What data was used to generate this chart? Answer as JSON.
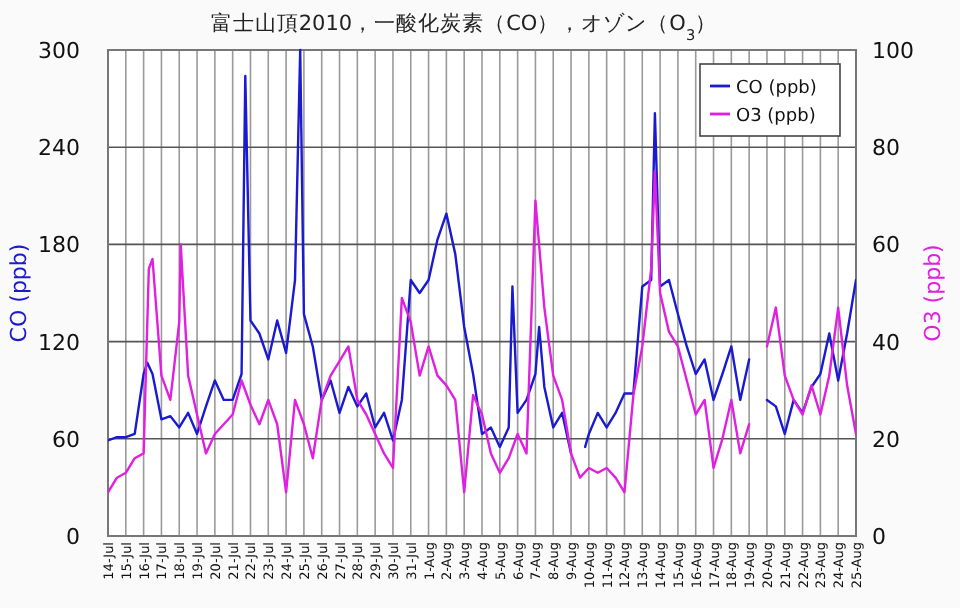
{
  "chart_data": {
    "type": "line",
    "title": "富士山頂2010，一酸化炭素（CO），オゾン（O$_{3}$）",
    "ylabel": "CO (ppb)",
    "y2label": "O3 (ppb)",
    "xlim": [
      "2010-07-14",
      "2010-08-25"
    ],
    "xticks": [
      {
        "value": "2010-07-14",
        "label": "14-Jul"
      },
      {
        "value": "2010-07-15",
        "label": "15-Jul"
      },
      {
        "value": "2010-07-16",
        "label": "16-Jul"
      },
      {
        "value": "2010-07-17",
        "label": "17-Jul"
      },
      {
        "value": "2010-07-18",
        "label": "18-Jul"
      },
      {
        "value": "2010-07-19",
        "label": "19-Jul"
      },
      {
        "value": "2010-07-20",
        "label": "20-Jul"
      },
      {
        "value": "2010-07-21",
        "label": "21-Jul"
      },
      {
        "value": "2010-07-22",
        "label": "22-Jul"
      },
      {
        "value": "2010-07-23",
        "label": "23-Jul"
      },
      {
        "value": "2010-07-24",
        "label": "24-Jul"
      },
      {
        "value": "2010-07-25",
        "label": "25-Jul"
      },
      {
        "value": "2010-07-26",
        "label": "26-Jul"
      },
      {
        "value": "2010-07-27",
        "label": "27-Jul"
      },
      {
        "value": "2010-07-28",
        "label": "28-Jul"
      },
      {
        "value": "2010-07-29",
        "label": "29-Jul"
      },
      {
        "value": "2010-07-30",
        "label": "30-Jul"
      },
      {
        "value": "2010-07-31",
        "label": "31-Jul"
      },
      {
        "value": "2010-08-01",
        "label": "1-Aug"
      },
      {
        "value": "2010-08-02",
        "label": "2-Aug"
      },
      {
        "value": "2010-08-03",
        "label": "3-Aug"
      },
      {
        "value": "2010-08-04",
        "label": "4-Aug"
      },
      {
        "value": "2010-08-05",
        "label": "5-Aug"
      },
      {
        "value": "2010-08-06",
        "label": "6-Aug"
      },
      {
        "value": "2010-08-07",
        "label": "7-Aug"
      },
      {
        "value": "2010-08-08",
        "label": "8-Aug"
      },
      {
        "value": "2010-08-09",
        "label": "9-Aug"
      },
      {
        "value": "2010-08-10",
        "label": "10-Aug"
      },
      {
        "value": "2010-08-11",
        "label": "11-Aug"
      },
      {
        "value": "2010-08-12",
        "label": "12-Aug"
      },
      {
        "value": "2010-08-13",
        "label": "13-Aug"
      },
      {
        "value": "2010-08-14",
        "label": "14-Aug"
      },
      {
        "value": "2010-08-15",
        "label": "15-Aug"
      },
      {
        "value": "2010-08-16",
        "label": "16-Aug"
      },
      {
        "value": "2010-08-17",
        "label": "17-Aug"
      },
      {
        "value": "2010-08-18",
        "label": "18-Aug"
      },
      {
        "value": "2010-08-19",
        "label": "19-Aug"
      },
      {
        "value": "2010-08-20",
        "label": "20-Aug"
      },
      {
        "value": "2010-08-21",
        "label": "21-Aug"
      },
      {
        "value": "2010-08-22",
        "label": "22-Aug"
      },
      {
        "value": "2010-08-23",
        "label": "23-Aug"
      },
      {
        "value": "2010-08-24",
        "label": "24-Aug"
      },
      {
        "value": "2010-08-25",
        "label": "25-Aug"
      }
    ],
    "ylim": [
      0,
      300
    ],
    "yticks": [
      0,
      60,
      120,
      180,
      240,
      300
    ],
    "y2lim": [
      0,
      100
    ],
    "y2ticks": [
      0,
      20,
      40,
      60,
      80,
      100
    ],
    "grid": true,
    "legend": "top right",
    "series": [
      {
        "name": "CO (ppb)",
        "color": "#1a1ad0",
        "x": [
          "2010-07-14T00:00",
          "2010-07-14T12:00",
          "2010-07-15T00:00",
          "2010-07-15T12:00",
          "2010-07-16T00:00",
          "2010-07-16T05:00",
          "2010-07-16T12:00",
          "2010-07-17T00:00",
          "2010-07-17T12:00",
          "2010-07-18T00:00",
          "2010-07-18T12:00",
          "2010-07-19T00:00",
          "2010-07-19T12:00",
          "2010-07-20T00:00",
          "2010-07-20T12:00",
          "2010-07-21T00:00",
          "2010-07-21T12:00",
          "2010-07-21T17:00",
          "2010-07-22T00:00",
          "2010-07-22T12:00",
          "2010-07-23T00:00",
          "2010-07-23T12:00",
          "2010-07-24T00:00",
          "2010-07-24T12:00",
          "2010-07-24T19:00",
          "2010-07-25T00:00",
          "2010-07-25T12:00",
          "2010-07-26T00:00",
          "2010-07-26T12:00",
          "2010-07-27T00:00",
          "2010-07-27T12:00",
          "2010-07-28T00:00",
          "2010-07-28T12:00",
          "2010-07-29T00:00",
          "2010-07-29T12:00",
          "2010-07-30T00:00",
          "2010-07-30T12:00",
          "2010-07-31T00:00",
          "2010-07-31T12:00",
          "2010-08-01T00:00",
          "2010-08-01T12:00",
          "2010-08-02T00:00",
          "2010-08-02T12:00",
          "2010-08-03T00:00",
          "2010-08-03T12:00",
          "2010-08-04T00:00",
          "2010-08-04T12:00",
          "2010-08-05T00:00",
          "2010-08-05T12:00",
          "2010-08-05T17:00",
          "2010-08-06T00:00",
          "2010-08-06T12:00",
          "2010-08-07T00:00",
          "2010-08-07T05:00",
          "2010-08-07T12:00",
          "2010-08-08T00:00",
          "2010-08-08T12:00",
          "2010-08-09T00:00",
          "2010-08-09T12:00",
          "2010-08-09T19:00",
          "2010-08-10T00:00",
          "2010-08-10T12:00",
          "2010-08-11T00:00",
          "2010-08-11T12:00",
          "2010-08-12T00:00",
          "2010-08-12T12:00",
          "2010-08-13T00:00",
          "2010-08-13T12:00",
          "2010-08-13T17:00",
          "2010-08-14T00:00",
          "2010-08-14T12:00",
          "2010-08-15T00:00",
          "2010-08-15T12:00",
          "2010-08-16T00:00",
          "2010-08-16T12:00",
          "2010-08-17T00:00",
          "2010-08-17T12:00",
          "2010-08-18T00:00",
          "2010-08-18T12:00",
          "2010-08-19T00:00",
          "2010-08-19T12:00",
          "2010-08-20T00:00",
          "2010-08-20T12:00",
          "2010-08-21T00:00",
          "2010-08-21T12:00",
          "2010-08-22T00:00",
          "2010-08-22T12:00",
          "2010-08-23T00:00",
          "2010-08-23T12:00",
          "2010-08-24T00:00",
          "2010-08-24T12:00",
          "2010-08-25T00:00"
        ],
        "values": [
          59,
          61,
          61,
          63,
          100,
          107,
          100,
          72,
          74,
          67,
          76,
          63,
          80,
          96,
          84,
          84,
          100,
          284,
          133,
          125,
          109,
          133,
          113,
          158,
          300,
          137,
          117,
          84,
          96,
          76,
          92,
          80,
          88,
          67,
          76,
          59,
          84,
          158,
          150,
          158,
          183,
          199,
          174,
          129,
          100,
          63,
          67,
          55,
          67,
          154,
          76,
          84,
          100,
          129,
          92,
          67,
          76,
          51,
          null,
          55,
          63,
          76,
          67,
          76,
          88,
          88,
          154,
          158,
          261,
          154,
          158,
          137,
          117,
          100,
          109,
          84,
          100,
          117,
          84,
          109,
          null,
          84,
          80,
          63,
          84,
          76,
          92,
          100,
          125,
          96,
          125,
          158
        ]
      },
      {
        "name": "O3 (ppb)",
        "color": "#e020e0",
        "axis": "y2",
        "x": [
          "2010-07-14T00:00",
          "2010-07-14T12:00",
          "2010-07-15T00:00",
          "2010-07-15T12:00",
          "2010-07-16T00:00",
          "2010-07-16T07:00",
          "2010-07-16T12:00",
          "2010-07-17T00:00",
          "2010-07-17T12:00",
          "2010-07-18T00:00",
          "2010-07-18T02:00",
          "2010-07-18T12:00",
          "2010-07-19T00:00",
          "2010-07-19T12:00",
          "2010-07-20T00:00",
          "2010-07-20T12:00",
          "2010-07-21T00:00",
          "2010-07-21T12:00",
          "2010-07-22T00:00",
          "2010-07-22T12:00",
          "2010-07-23T00:00",
          "2010-07-23T12:00",
          "2010-07-24T00:00",
          "2010-07-24T12:00",
          "2010-07-25T00:00",
          "2010-07-25T12:00",
          "2010-07-26T00:00",
          "2010-07-26T12:00",
          "2010-07-27T00:00",
          "2010-07-27T12:00",
          "2010-07-28T00:00",
          "2010-07-28T12:00",
          "2010-07-29T00:00",
          "2010-07-29T12:00",
          "2010-07-30T00:00",
          "2010-07-30T12:00",
          "2010-07-31T00:00",
          "2010-07-31T12:00",
          "2010-08-01T00:00",
          "2010-08-01T12:00",
          "2010-08-02T00:00",
          "2010-08-02T12:00",
          "2010-08-03T00:00",
          "2010-08-03T12:00",
          "2010-08-04T00:00",
          "2010-08-04T12:00",
          "2010-08-05T00:00",
          "2010-08-05T12:00",
          "2010-08-06T00:00",
          "2010-08-06T12:00",
          "2010-08-07T00:00",
          "2010-08-07T12:00",
          "2010-08-08T00:00",
          "2010-08-08T12:00",
          "2010-08-09T00:00",
          "2010-08-09T12:00",
          "2010-08-10T00:00",
          "2010-08-10T12:00",
          "2010-08-11T00:00",
          "2010-08-11T12:00",
          "2010-08-12T00:00",
          "2010-08-12T12:00",
          "2010-08-13T00:00",
          "2010-08-13T12:00",
          "2010-08-13T17:00",
          "2010-08-14T00:00",
          "2010-08-14T12:00",
          "2010-08-15T00:00",
          "2010-08-15T12:00",
          "2010-08-16T00:00",
          "2010-08-16T12:00",
          "2010-08-17T00:00",
          "2010-08-17T12:00",
          "2010-08-18T00:00",
          "2010-08-18T12:00",
          "2010-08-19T00:00",
          "2010-08-19T12:00",
          "2010-08-20T00:00",
          "2010-08-20T12:00",
          "2010-08-21T00:00",
          "2010-08-21T12:00",
          "2010-08-22T00:00",
          "2010-08-22T12:00",
          "2010-08-23T00:00",
          "2010-08-23T12:00",
          "2010-08-24T00:00",
          "2010-08-24T12:00",
          "2010-08-25T00:00"
        ],
        "values": [
          9,
          12,
          13,
          16,
          17,
          55,
          57,
          33,
          28,
          44,
          60,
          33,
          25,
          17,
          21,
          23,
          25,
          32,
          27,
          23,
          28,
          23,
          9,
          28,
          23,
          16,
          28,
          33,
          36,
          39,
          28,
          25,
          21,
          17,
          14,
          49,
          44,
          33,
          39,
          33,
          31,
          28,
          9,
          29,
          25,
          17,
          13,
          16,
          21,
          17,
          69,
          47,
          33,
          28,
          17,
          12,
          14,
          13,
          14,
          12,
          9,
          29,
          39,
          55,
          75,
          50,
          42,
          39,
          32,
          25,
          28,
          14,
          20,
          28,
          17,
          23,
          null,
          39,
          47,
          33,
          28,
          25,
          31,
          25,
          33,
          47,
          31,
          21
        ]
      }
    ]
  }
}
